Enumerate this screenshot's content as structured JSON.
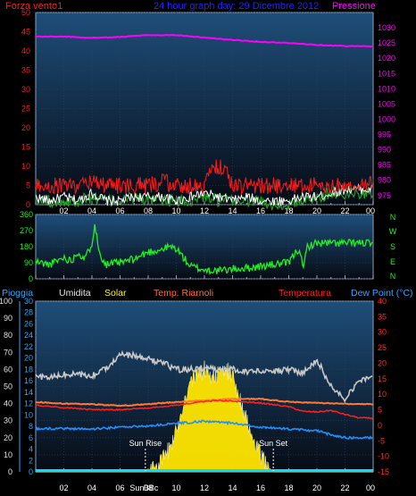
{
  "colors": {
    "background": "#000000",
    "panel_top": "#1e4e7a",
    "panel_bottom": "#070b14",
    "grid": "#2a4566",
    "wind": "#ff1a1a",
    "gust": "#ffffff",
    "wind_avg": "#1fa81f",
    "pressure": "#ff00ff",
    "direction": "#22ee22",
    "rain": "#00e0ff",
    "humidity": "#c8c8c8",
    "solar": "#ffe600",
    "temp_index": "#ff7a30",
    "temperature": "#ff2020",
    "dewpoint": "#1e90ff",
    "title": "#2222ff",
    "rain_axis": "#29aaff",
    "temp_axis": "#ff2a2a",
    "left_ticks": "#e0e0e0",
    "hdr_humidity": "#e6e6e6",
    "hdr_solar": "#ffee33",
    "hdr_tempindex": "#ff6a3a",
    "hdr_temp": "#ff2020",
    "hdr_dew": "#3aa0ff"
  },
  "x_axis": {
    "labels": [
      "02",
      "04",
      "06",
      "08",
      "10",
      "12",
      "14",
      "16",
      "18",
      "20",
      "22",
      "00"
    ],
    "extra_labels": [
      "Sun",
      "BBc"
    ]
  },
  "header": {
    "wind_label": "Forza vento1",
    "title": "24 hour graph day: 29 Dicembre 2012",
    "pressure_label": "Pressione"
  },
  "direction_labels": [
    "N",
    "W",
    "S",
    "E",
    "N"
  ],
  "bottom_header": {
    "rain": "Pioggia",
    "humidity": "Umidita",
    "solar": "Solar",
    "temp_index": "Temp. Riarnoli",
    "temperature": "Temperatura",
    "dewpoint": "Dew Point (°C)"
  },
  "annotations": {
    "sunrise": "Sun Rise",
    "sunset": "Sun Set"
  },
  "chart_data": [
    {
      "type": "line",
      "title": "24 hour graph day: 29 Dicembre 2012",
      "x_range_hours": [
        0,
        24
      ],
      "left_axis": {
        "label": "Forza vento1",
        "ticks": [
          0,
          5,
          10,
          15,
          20,
          25,
          30,
          35,
          40,
          45,
          50
        ],
        "range": [
          0,
          50
        ]
      },
      "right_axis": {
        "label": "Pressione",
        "ticks": [
          975,
          980,
          985,
          990,
          995,
          1000,
          1005,
          1010,
          1015,
          1020,
          1025,
          1030
        ],
        "range": [
          972,
          1035
        ]
      },
      "series": [
        {
          "name": "Pressione",
          "axis": "right",
          "x": [
            0,
            2,
            4,
            6,
            8,
            10,
            12,
            14,
            16,
            18,
            20,
            22,
            24
          ],
          "y": [
            1027.1,
            1027.1,
            1026.7,
            1027.0,
            1027.6,
            1027.6,
            1026.8,
            1026.0,
            1025.4,
            1025.0,
            1024.4,
            1024.0,
            1023.9
          ]
        },
        {
          "name": "Forza vento1",
          "axis": "left",
          "x": [
            0,
            1,
            2,
            3,
            4,
            5,
            6,
            7,
            8,
            9,
            10,
            11,
            12,
            12.5,
            13,
            13.5,
            14,
            15,
            16,
            17,
            18,
            19,
            20,
            21,
            22,
            23,
            24
          ],
          "y": [
            5,
            5,
            5,
            5,
            6,
            5,
            5,
            5,
            5,
            6,
            5,
            5,
            5,
            9,
            10,
            9,
            5,
            5,
            5,
            5,
            5,
            5,
            5,
            5,
            5,
            5,
            6
          ]
        },
        {
          "axis": "left",
          "x": [
            0,
            1,
            2,
            3,
            4,
            5,
            6,
            7,
            8,
            9,
            10,
            11,
            12,
            13,
            14,
            15,
            16,
            17,
            18,
            19,
            20,
            21,
            22,
            23,
            24
          ],
          "y": [
            2,
            1,
            2,
            1,
            3,
            1,
            1,
            2,
            2,
            2,
            1,
            2,
            3,
            2,
            1,
            2,
            1,
            1,
            1,
            2,
            2,
            3,
            4,
            4,
            4
          ]
        },
        {
          "axis": "left",
          "x": [
            0,
            1,
            2,
            3,
            4,
            5,
            6,
            7,
            8,
            9,
            10,
            11,
            12,
            13,
            14,
            15,
            16,
            17,
            18,
            19,
            20,
            21,
            22,
            23,
            24
          ],
          "y": [
            1,
            1,
            1,
            1,
            2,
            1,
            1,
            2,
            1,
            1,
            1,
            1,
            2,
            1,
            1,
            1,
            1,
            0,
            0,
            1,
            2,
            3,
            3,
            3,
            3
          ]
        }
      ]
    },
    {
      "type": "line",
      "x_range_hours": [
        0,
        24
      ],
      "y_axis": {
        "ticks": [
          0,
          90,
          180,
          270,
          360
        ],
        "range": [
          0,
          360
        ]
      },
      "right_labels": [
        "N",
        "W",
        "S",
        "E",
        "N"
      ],
      "series": [
        {
          "axis": "left",
          "x": [
            0,
            1,
            2,
            2.5,
            3,
            3.5,
            4,
            4.2,
            4.5,
            5,
            6,
            7,
            8,
            9,
            9.5,
            10,
            11,
            12,
            13,
            14,
            15,
            16,
            17,
            18,
            18.5,
            18.8,
            19,
            19.3,
            20,
            21,
            22,
            23,
            24
          ],
          "y": [
            95,
            80,
            120,
            100,
            150,
            110,
            200,
            310,
            150,
            80,
            90,
            110,
            150,
            165,
            180,
            170,
            70,
            50,
            45,
            55,
            60,
            70,
            80,
            90,
            150,
            170,
            40,
            180,
            200,
            200,
            200,
            200,
            200
          ]
        }
      ]
    },
    {
      "type": "area",
      "x_range_hours": [
        0,
        24
      ],
      "rain_axis": {
        "label": "Pioggia",
        "ticks": [
          0,
          10,
          20,
          30,
          40,
          50,
          60,
          70,
          80,
          90,
          100
        ],
        "range": [
          0,
          100
        ]
      },
      "humidity_axis": {
        "ticks": [
          0,
          2,
          4,
          6,
          8,
          10,
          12,
          14,
          16,
          18,
          20,
          22,
          24,
          26,
          28,
          30
        ],
        "range": [
          0,
          30
        ]
      },
      "temp_axis": {
        "label": "Temperatura",
        "ticks": [
          -15,
          -10,
          -5,
          0,
          5,
          10,
          15,
          20,
          25,
          30,
          35,
          40
        ],
        "range": [
          -15,
          40
        ]
      },
      "annotations": [
        {
          "text": "Sun Rise",
          "x": 7.8
        },
        {
          "text": "Sun Set",
          "x": 16.9
        }
      ],
      "series": [
        {
          "name": "Umidita",
          "axis": "rain",
          "x": [
            0,
            1,
            2,
            3,
            4,
            5,
            6,
            7,
            8,
            9,
            10,
            11,
            12,
            13,
            14,
            15,
            16,
            17,
            18,
            19,
            20,
            21,
            21.5,
            22,
            23,
            24
          ],
          "y": [
            56,
            55,
            57,
            57,
            56,
            61,
            69,
            68,
            66,
            64,
            60,
            60,
            61,
            60,
            60,
            59,
            59,
            59,
            60,
            58,
            66,
            50,
            47,
            43,
            54,
            55
          ]
        },
        {
          "name": "Temp. Riarnoli",
          "axis": "temp",
          "x": [
            0,
            2,
            4,
            6,
            8,
            10,
            12,
            14,
            16,
            18,
            20,
            22,
            24
          ],
          "y": [
            7.5,
            7.0,
            6.8,
            6.3,
            6.8,
            7.5,
            8.0,
            8.5,
            8.5,
            7.6,
            7.2,
            7.0,
            6.8
          ]
        },
        {
          "name": "Temperatura",
          "axis": "temp",
          "x": [
            0,
            2,
            4,
            6,
            8,
            10,
            12,
            13,
            14,
            16,
            18,
            19,
            20,
            21,
            22,
            23,
            24
          ],
          "y": [
            6.5,
            5.7,
            5.1,
            5.0,
            5.6,
            6.5,
            7.7,
            8.0,
            7.8,
            7.2,
            6.0,
            4.5,
            4.3,
            4.8,
            3.5,
            2.4,
            2.3
          ]
        },
        {
          "name": "Dew Point (°C)",
          "axis": "temp",
          "x": [
            0,
            2,
            4,
            6,
            8,
            10,
            12,
            14,
            16,
            18,
            20,
            21,
            22,
            24
          ],
          "y": [
            -1.2,
            -1.0,
            -1.2,
            -0.6,
            -0.2,
            0.6,
            1.3,
            0.7,
            -0.6,
            -1.2,
            -1.8,
            -3.0,
            -4.0,
            -4.0
          ]
        },
        {
          "name": "Solar",
          "axis": "humidity",
          "x": [
            0,
            7.8,
            8.5,
            9,
            9.5,
            10,
            10.5,
            11,
            11.5,
            12,
            12.5,
            13,
            13.5,
            14,
            14.5,
            15,
            15.5,
            16,
            16.5,
            16.9,
            24
          ],
          "y": [
            0,
            0,
            1,
            2,
            4,
            7,
            12,
            16,
            17,
            18,
            17,
            17,
            18,
            17,
            13,
            9,
            5,
            3,
            1,
            0,
            0
          ]
        },
        {
          "name": "Pioggia",
          "axis": "rain",
          "x": [
            0,
            24
          ],
          "y": [
            0,
            0
          ]
        }
      ]
    }
  ]
}
